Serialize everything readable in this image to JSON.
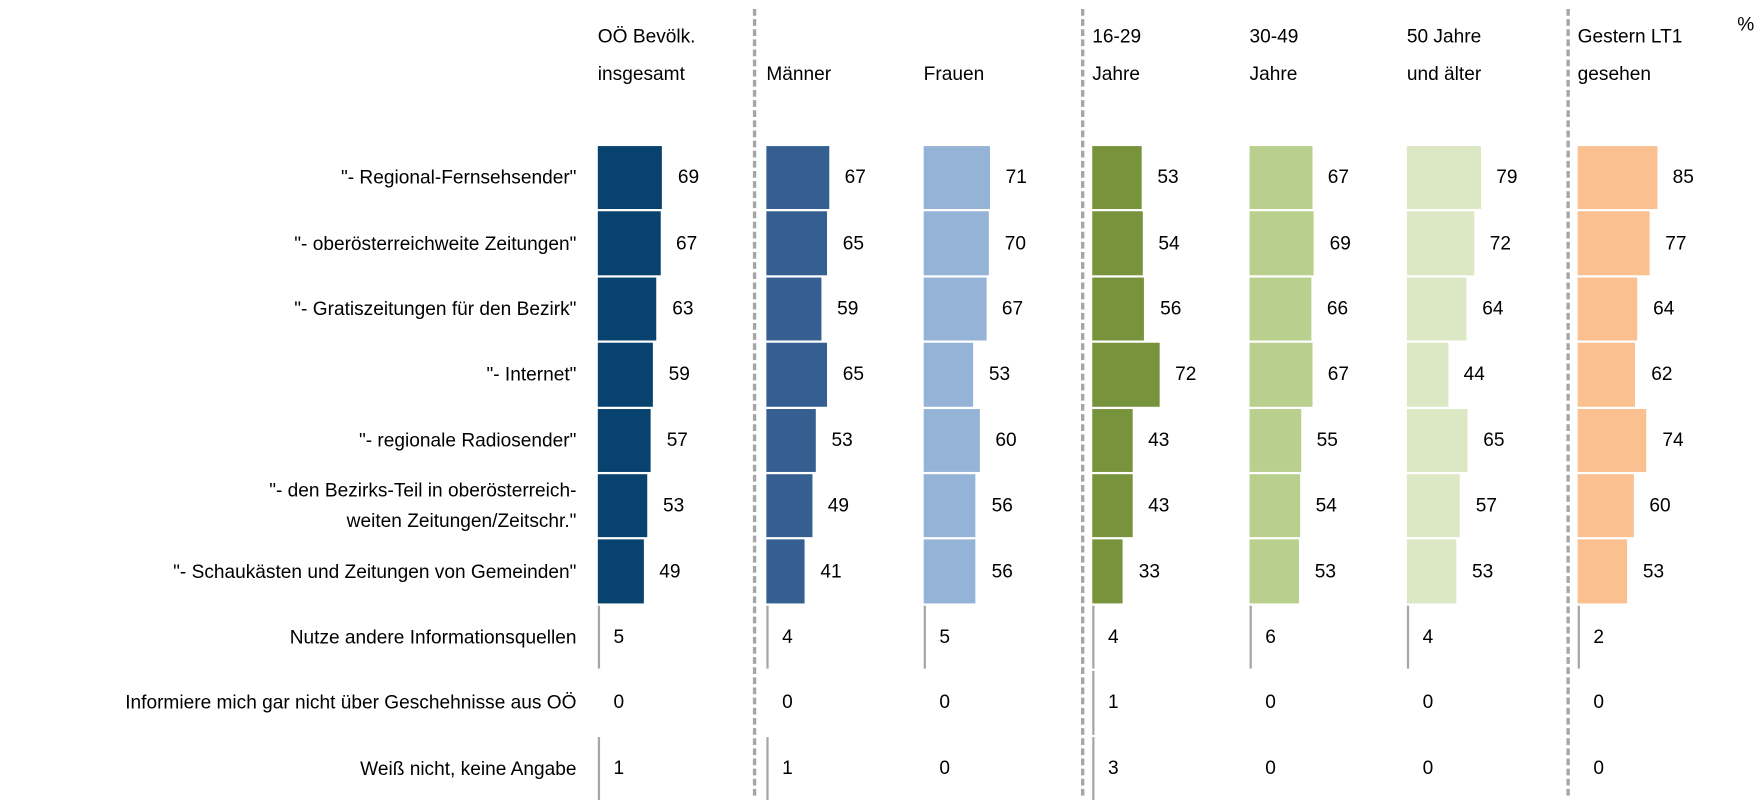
{
  "chart_data": {
    "type": "bar",
    "orientation": "horizontal",
    "unit_label": "%",
    "categories": [
      "\"- Regional-Fernsehsender\"",
      "\"- oberösterreichweite Zeitungen\"",
      "\"- Gratiszeitungen für den Bezirk\"",
      "\"- Internet\"",
      "\"- regionale Radiosender\"",
      "\"- den Bezirks-Teil in oberösterreich-\nweiten Zeitungen/Zeitschr.\"",
      "\"- Schaukästen und Zeitungen von Gemeinden\"",
      "Nutze andere Informationsquellen",
      "Informiere mich gar nicht über Geschehnisse aus OÖ",
      "Weiß nicht, keine Angabe"
    ],
    "secondary_color": "#a6a6a6",
    "series": [
      {
        "name": "OÖ Bevölk.\ninsgesamt",
        "color": "#08426e",
        "values": [
          69,
          67,
          63,
          59,
          57,
          53,
          49,
          5,
          0,
          1
        ]
      },
      {
        "name": "Männer",
        "color": "#355f91",
        "values": [
          67,
          65,
          59,
          65,
          53,
          49,
          41,
          4,
          0,
          1
        ]
      },
      {
        "name": "Frauen",
        "color": "#95b3d7",
        "values": [
          71,
          70,
          67,
          53,
          60,
          56,
          56,
          5,
          0,
          0
        ]
      },
      {
        "name": "16-29\nJahre",
        "color": "#77933c",
        "values": [
          53,
          54,
          56,
          72,
          43,
          43,
          33,
          4,
          1,
          3
        ]
      },
      {
        "name": "30-49\nJahre",
        "color": "#b9cf8e",
        "values": [
          67,
          69,
          66,
          67,
          55,
          54,
          53,
          6,
          0,
          0
        ]
      },
      {
        "name": "50 Jahre\nund älter",
        "color": "#dce7c4",
        "values": [
          79,
          72,
          64,
          44,
          65,
          57,
          53,
          4,
          0,
          0
        ]
      },
      {
        "name": "Gestern LT1\ngesehen",
        "color": "#fac090",
        "values": [
          85,
          77,
          64,
          62,
          74,
          60,
          53,
          2,
          0,
          0
        ]
      }
    ]
  }
}
